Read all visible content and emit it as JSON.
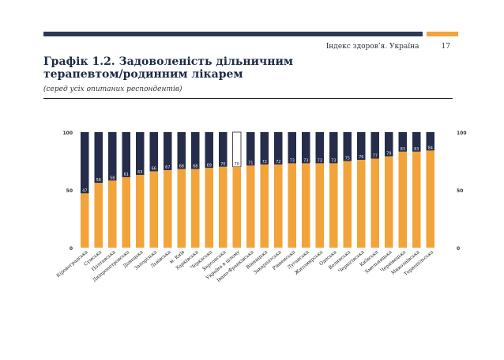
{
  "header": {
    "report_name": "Індекс здоров’я. Україна",
    "page_number": "17"
  },
  "title": "Графік 1.2. Задоволеність дільничним терапевтом/родинним лікарем",
  "subtitle": "(серед усіх опитаних респондентів)",
  "colors": {
    "satisfied": "#f2a33a",
    "remainder": "#262d4a",
    "highlight_remainder": "#ffffff",
    "dark": "#2b3a55"
  },
  "chart_data": {
    "type": "bar",
    "stacked": true,
    "title": "Графік 1.2. Задоволеність дільничним терапевтом/родинним лікарем",
    "xlabel": "",
    "ylabel": "",
    "ylim": [
      0,
      100
    ],
    "yticks": [
      0,
      50,
      100
    ],
    "highlight_category": "Україна в цілому",
    "categories": [
      "Кіровоградська",
      "Сумська",
      "Полтавська",
      "Дніпропетровська",
      "Донецька",
      "Запорізька",
      "Львівська",
      "м. Київ",
      "Харківська",
      "Черкаська",
      "Херсонська",
      "Україна в цілому",
      "Івано-Франківська",
      "Вінницька",
      "Закарпатська",
      "Рівненська",
      "Луганська",
      "Житомирська",
      "Одеська",
      "Волинська",
      "Чернігівська",
      "Київська",
      "Хмельницька",
      "Чернівецька",
      "Миколаївська",
      "Тернопільська"
    ],
    "values": [
      47,
      56,
      58,
      61,
      63,
      66,
      67,
      68,
      68,
      69,
      70,
      70,
      71,
      72,
      72,
      73,
      73,
      73,
      73,
      75,
      76,
      77,
      79,
      83,
      83,
      84
    ]
  }
}
